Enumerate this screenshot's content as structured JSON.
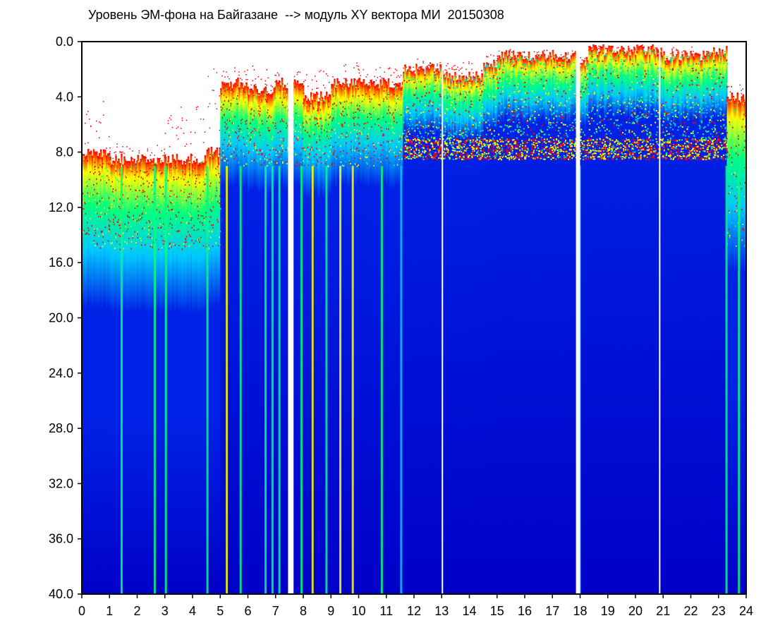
{
  "chart_data": {
    "type": "heatmap",
    "title": "Уровень ЭМ-фона на Байгазане  --> модуль XY вектора МИ  20150308",
    "xlabel": "",
    "ylabel": "",
    "xlim": [
      0,
      24
    ],
    "ylim": [
      0,
      40
    ],
    "y_inverted": true,
    "grid": false,
    "x_tick_labels": [
      "0",
      "1",
      "2",
      "3",
      "4",
      "5",
      "6",
      "7",
      "8",
      "9",
      "10",
      "11",
      "12",
      "13",
      "14",
      "15",
      "16",
      "17",
      "18",
      "19",
      "20",
      "21",
      "22",
      "23",
      "24"
    ],
    "y_tick_labels": [
      "0.0",
      "4.0",
      "8.0",
      "12.0",
      "16.0",
      "20.0",
      "24.0",
      "28.0",
      "32.0",
      "36.0",
      "40.0"
    ],
    "colormap": [
      "#0000c8",
      "#0022e6",
      "#00c8ff",
      "#00ff80",
      "#ffff00",
      "#ff0000"
    ],
    "background_color": "#ffffff",
    "segments": [
      {
        "x_from": 0.0,
        "x_to": 1.0,
        "top_y": 8.0,
        "noise_top_y": 4.5,
        "hot_band": [
          8.0,
          15.0
        ],
        "level": "high"
      },
      {
        "x_from": 1.0,
        "x_to": 2.0,
        "top_y": 8.5,
        "noise_top_y": 7.5,
        "hot_band": [
          8.5,
          15.0
        ],
        "level": "high"
      },
      {
        "x_from": 2.0,
        "x_to": 3.0,
        "top_y": 8.5,
        "noise_top_y": 7.5,
        "hot_band": [
          8.5,
          15.0
        ],
        "level": "high"
      },
      {
        "x_from": 3.0,
        "x_to": 4.5,
        "top_y": 8.5,
        "noise_top_y": 4.5,
        "hot_band": [
          8.5,
          15.0
        ],
        "level": "high"
      },
      {
        "x_from": 4.5,
        "x_to": 5.0,
        "top_y": 8.0,
        "noise_top_y": 2.0,
        "hot_band": [
          8.0,
          15.0
        ],
        "level": "high"
      },
      {
        "x_from": 5.0,
        "x_to": 6.0,
        "top_y": 3.0,
        "noise_top_y": 2.0,
        "hot_band": [
          3.0,
          9.0
        ],
        "level": "medium"
      },
      {
        "x_from": 6.0,
        "x_to": 7.0,
        "top_y": 3.5,
        "noise_top_y": 2.0,
        "hot_band": [
          3.5,
          9.0
        ],
        "level": "medium"
      },
      {
        "x_from": 7.0,
        "x_to": 8.0,
        "top_y": 3.0,
        "noise_top_y": 2.0,
        "hot_band": [
          3.0,
          9.0
        ],
        "level": "medium"
      },
      {
        "x_from": 8.0,
        "x_to": 9.0,
        "top_y": 4.0,
        "noise_top_y": 2.0,
        "hot_band": [
          4.0,
          9.0
        ],
        "level": "medium"
      },
      {
        "x_from": 9.0,
        "x_to": 10.0,
        "top_y": 3.0,
        "noise_top_y": 1.5,
        "hot_band": [
          3.0,
          9.0
        ],
        "level": "medium"
      },
      {
        "x_from": 10.0,
        "x_to": 11.0,
        "top_y": 3.0,
        "noise_top_y": 2.0,
        "hot_band": [
          3.0,
          9.0
        ],
        "level": "medium"
      },
      {
        "x_from": 11.0,
        "x_to": 11.6,
        "top_y": 3.0,
        "noise_top_y": 2.0,
        "hot_band": [
          3.0,
          9.0
        ],
        "level": "medium"
      },
      {
        "x_from": 11.6,
        "x_to": 13.0,
        "top_y": 2.0,
        "noise_top_y": 1.5,
        "hot_band": [
          2.0,
          8.5
        ],
        "level": "low"
      },
      {
        "x_from": 13.0,
        "x_to": 14.5,
        "top_y": 2.5,
        "noise_top_y": 1.5,
        "hot_band": [
          2.5,
          8.5
        ],
        "level": "low"
      },
      {
        "x_from": 14.5,
        "x_to": 15.0,
        "top_y": 1.5,
        "noise_top_y": 1.0,
        "hot_band": [
          1.5,
          8.5
        ],
        "level": "low"
      },
      {
        "x_from": 15.0,
        "x_to": 17.9,
        "top_y": 1.0,
        "noise_top_y": 0.8,
        "hot_band": [
          1.0,
          8.5
        ],
        "level": "low"
      },
      {
        "x_from": 17.9,
        "x_to": 18.3,
        "top_y": 1.5,
        "noise_top_y": 1.0,
        "hot_band": [
          1.5,
          8.5
        ],
        "level": "low"
      },
      {
        "x_from": 18.3,
        "x_to": 20.9,
        "top_y": 0.6,
        "noise_top_y": 0.4,
        "hot_band": [
          0.6,
          8.5
        ],
        "level": "low"
      },
      {
        "x_from": 20.9,
        "x_to": 22.5,
        "top_y": 1.0,
        "noise_top_y": 0.6,
        "hot_band": [
          1.0,
          8.5
        ],
        "level": "low"
      },
      {
        "x_from": 22.5,
        "x_to": 23.3,
        "top_y": 0.7,
        "noise_top_y": 0.5,
        "hot_band": [
          0.7,
          8.5
        ],
        "level": "low"
      },
      {
        "x_from": 23.3,
        "x_to": 24.0,
        "top_y": 4.0,
        "noise_top_y": 3.0,
        "hot_band": [
          4.0,
          15.0
        ],
        "level": "high"
      }
    ],
    "gaps": [
      {
        "x": 7.45,
        "width": 0.2,
        "color": "#ffffff"
      },
      {
        "x": 13.0,
        "width": 0.05,
        "color": "#ffffff"
      },
      {
        "x": 17.85,
        "width": 0.15,
        "color": "#ffffff"
      },
      {
        "x": 20.85,
        "width": 0.05,
        "color": "#ffffff"
      }
    ],
    "bright_streaks": [
      {
        "x": 1.4,
        "color": "#00ff80"
      },
      {
        "x": 2.6,
        "color": "#00ff80"
      },
      {
        "x": 3.0,
        "color": "#00ff80"
      },
      {
        "x": 4.5,
        "color": "#00ff80"
      },
      {
        "x": 5.2,
        "color": "#ffff00"
      },
      {
        "x": 5.7,
        "color": "#00ff80"
      },
      {
        "x": 6.6,
        "color": "#00ff80"
      },
      {
        "x": 6.85,
        "color": "#00ff80"
      },
      {
        "x": 7.1,
        "color": "#00ff80"
      },
      {
        "x": 7.9,
        "color": "#00ff80"
      },
      {
        "x": 8.3,
        "color": "#ffff00"
      },
      {
        "x": 8.8,
        "color": "#00ff80"
      },
      {
        "x": 9.3,
        "color": "#ffff00"
      },
      {
        "x": 9.75,
        "color": "#ffff00"
      },
      {
        "x": 10.8,
        "color": "#00ff80"
      },
      {
        "x": 11.5,
        "color": "#00c8ff"
      },
      {
        "x": 17.95,
        "color": "#00c8ff"
      },
      {
        "x": 23.25,
        "color": "#00ff80"
      },
      {
        "x": 23.7,
        "color": "#00ff80"
      }
    ]
  }
}
